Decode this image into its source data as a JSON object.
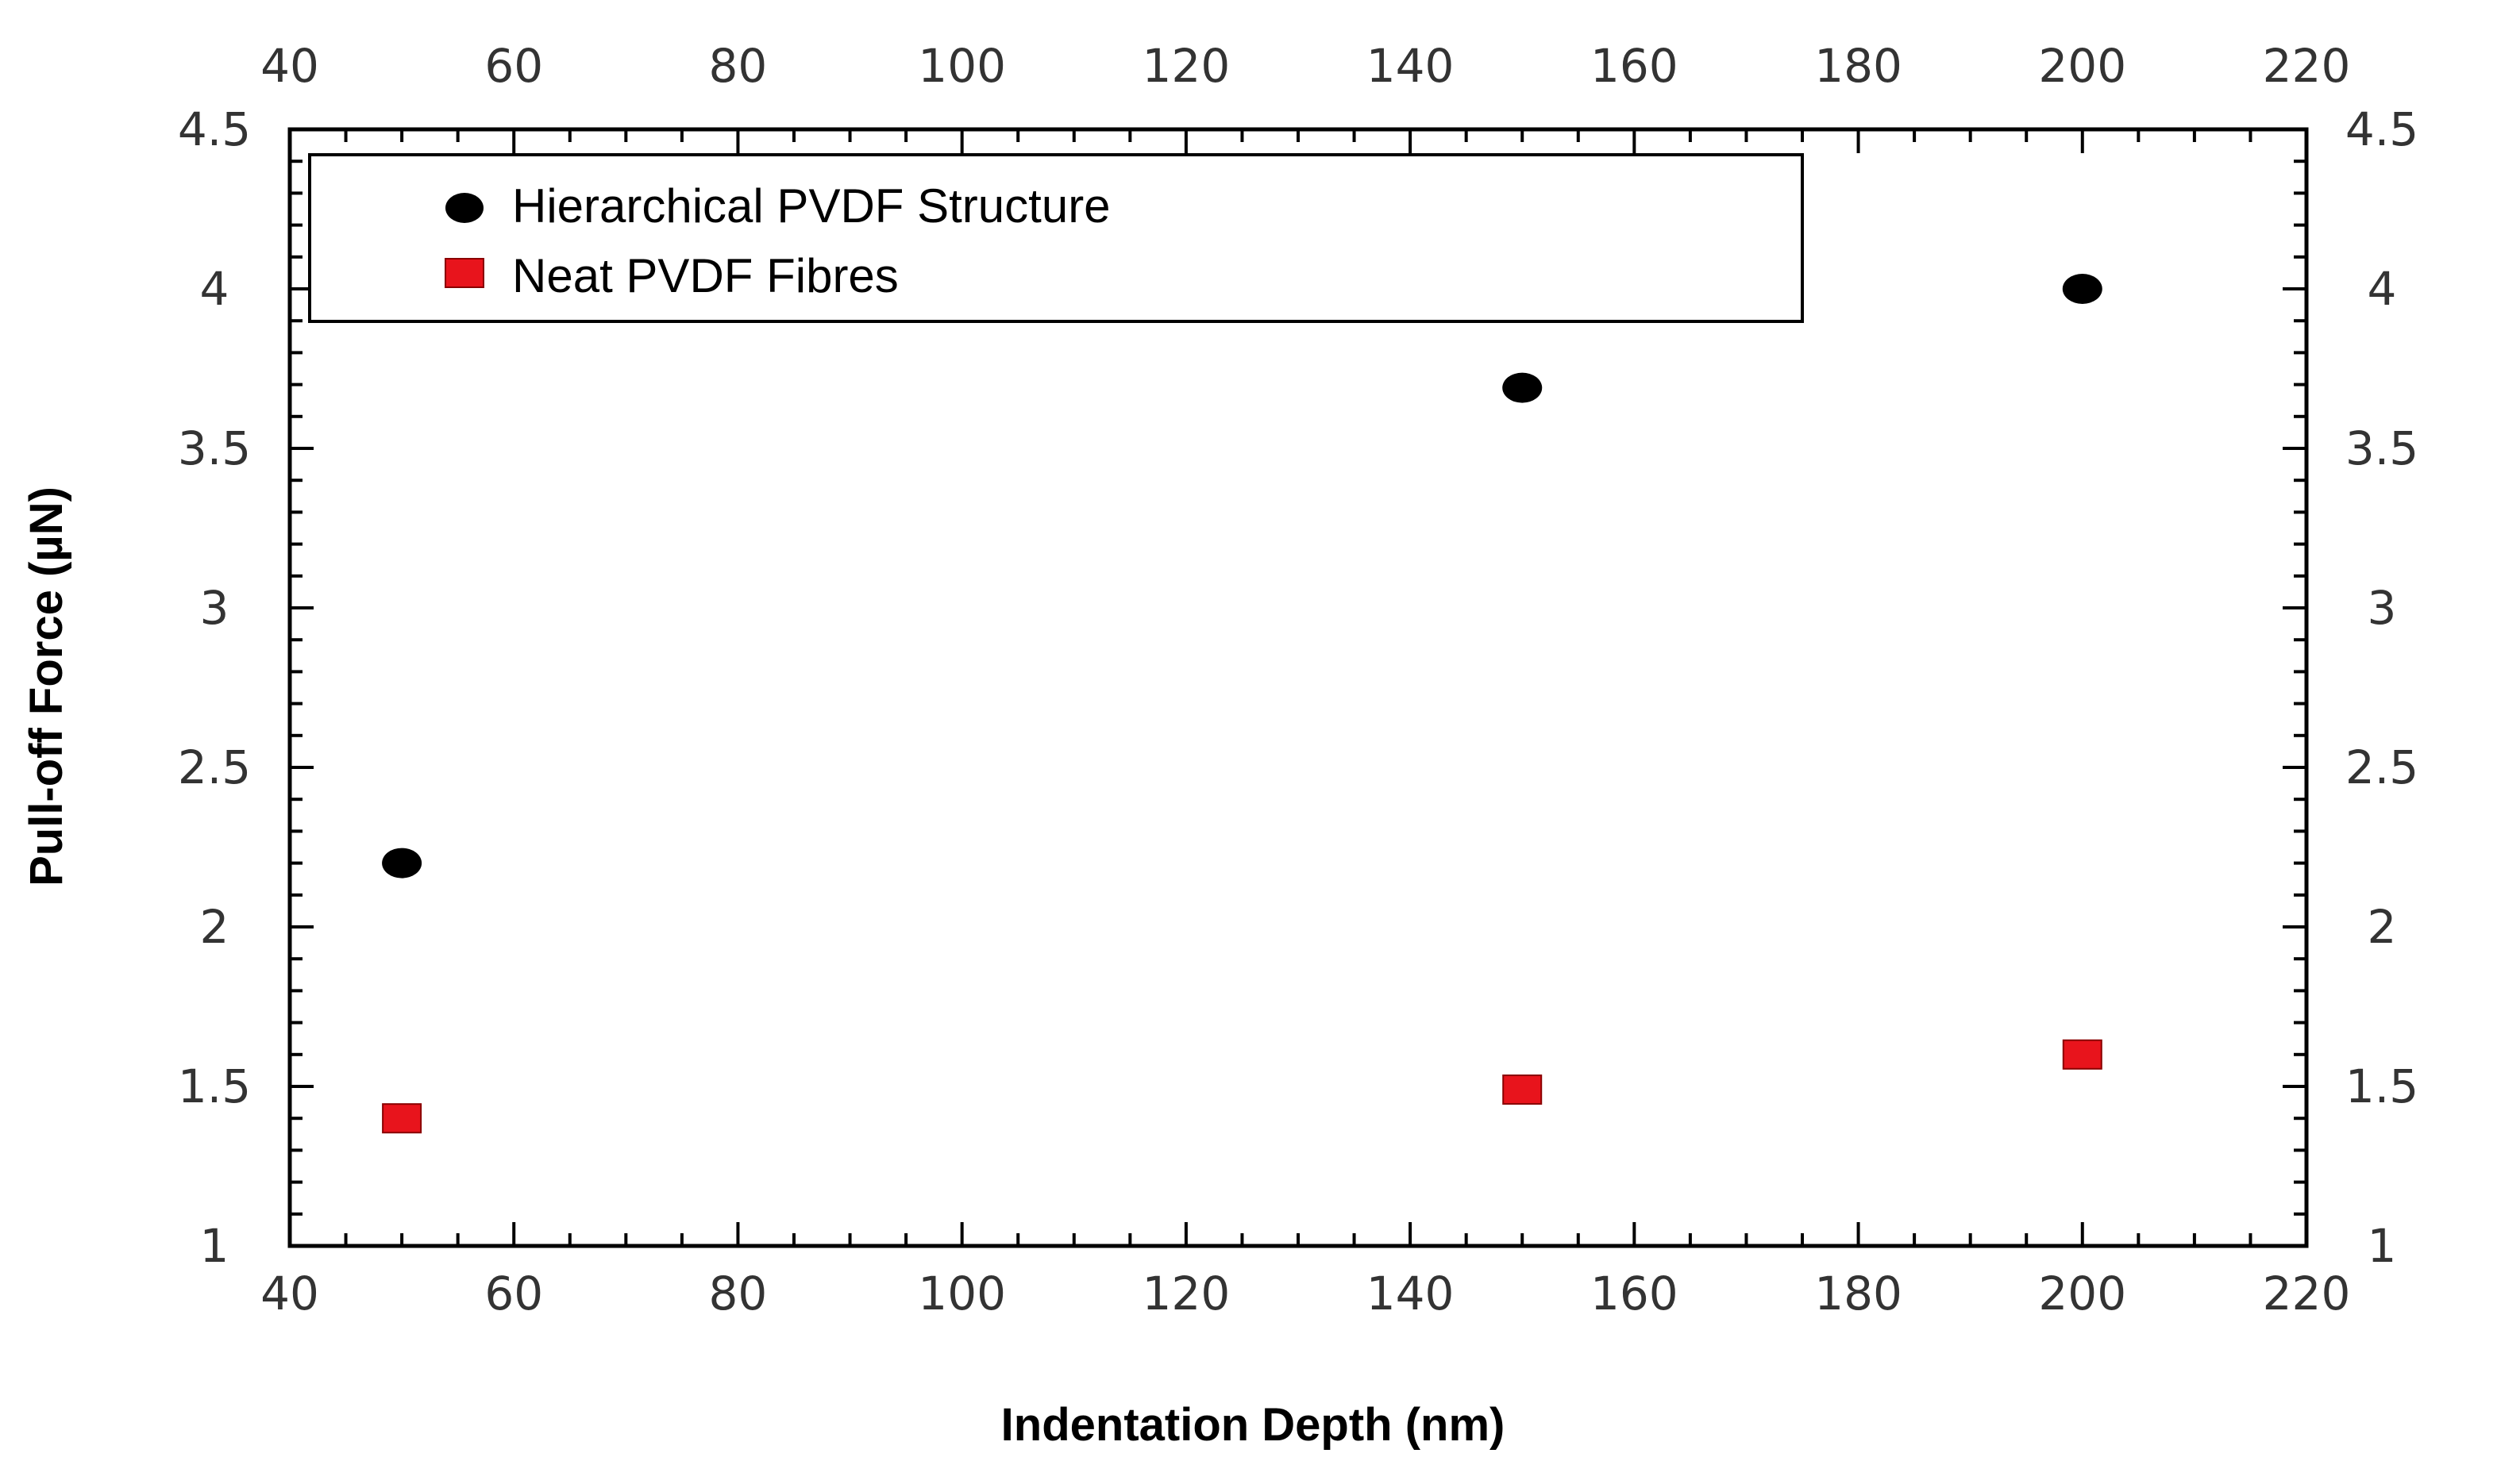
{
  "chart_data": {
    "type": "scatter",
    "title": "",
    "xlabel": "Indentation Depth (nm)",
    "ylabel": "Pull-off Force (µN)",
    "xlim": [
      40,
      220
    ],
    "ylim": [
      1,
      4.5
    ],
    "x_ticks": [
      40,
      60,
      80,
      100,
      120,
      140,
      160,
      180,
      200,
      220
    ],
    "y_ticks": [
      1,
      1.5,
      2,
      2.5,
      3,
      3.5,
      4,
      4.5
    ],
    "x_tick_labels": [
      "40",
      "60",
      "80",
      "100",
      "120",
      "140",
      "160",
      "180",
      "200",
      "220"
    ],
    "y_tick_labels": [
      "1",
      "1.5",
      "2",
      "2.5",
      "3",
      "3.5",
      "4",
      "4.5"
    ],
    "mirror_axes": true,
    "grid": false,
    "legend_position": "top-left",
    "series": [
      {
        "name": "Hierarchical PVDF Structure",
        "marker": "circle",
        "color": "#000000",
        "x": [
          50,
          150,
          200
        ],
        "y": [
          2.2,
          3.69,
          4.0
        ]
      },
      {
        "name": "Neat PVDF Fibres",
        "marker": "square",
        "color": "#e8141c",
        "x": [
          50,
          150,
          200
        ],
        "y": [
          1.4,
          1.49,
          1.6
        ]
      }
    ]
  }
}
